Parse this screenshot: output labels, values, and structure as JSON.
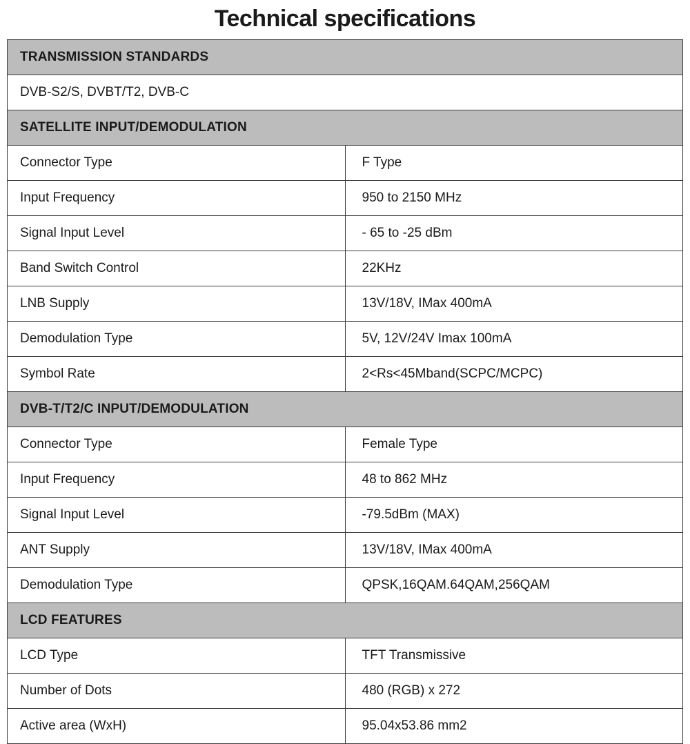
{
  "title": "Technical specifications",
  "styling": {
    "page_bg": "#ffffff",
    "header_bg": "#bcbcbc",
    "cell_bg": "#ffffff",
    "border_color": "#3a3a3a",
    "text_color": "#1a1a1a",
    "title_fontsize": 34,
    "title_weight": 900,
    "cell_fontsize": 19,
    "header_weight": 700,
    "label_col_width_pct": 43,
    "value_col_width_pct": 57,
    "cell_padding_v": 14,
    "cell_padding_h": 18
  },
  "sections": [
    {
      "header": "TRANSMISSION STANDARDS",
      "rows": [
        {
          "full": "DVB-S2/S, DVBT/T2, DVB-C"
        }
      ]
    },
    {
      "header": "SATELLITE INPUT/DEMODULATION",
      "rows": [
        {
          "label": "Connector Type",
          "value": "F Type"
        },
        {
          "label": "Input Frequency",
          "value": "950 to 2150 MHz"
        },
        {
          "label": "Signal Input Level",
          "value": "- 65 to -25 dBm"
        },
        {
          "label": "Band Switch Control",
          "value": "22KHz"
        },
        {
          "label": "LNB Supply",
          "value": "13V/18V, IMax 400mA"
        },
        {
          "label": "Demodulation Type",
          "value": "5V, 12V/24V Imax 100mA"
        },
        {
          "label": "Symbol Rate",
          "value": "2<Rs<45Mband(SCPC/MCPC)"
        }
      ]
    },
    {
      "header": "DVB-T/T2/C INPUT/DEMODULATION",
      "rows": [
        {
          "label": "Connector Type",
          "value": "Female Type"
        },
        {
          "label": "Input Frequency",
          "value": "48 to 862 MHz"
        },
        {
          "label": "Signal Input Level",
          "value": "-79.5dBm (MAX)"
        },
        {
          "label": "ANT Supply",
          "value": "13V/18V, IMax 400mA"
        },
        {
          "label": "Demodulation Type",
          "value": "QPSK,16QAM.64QAM,256QAM"
        }
      ]
    },
    {
      "header": "LCD FEATURES",
      "rows": [
        {
          "label": "LCD Type",
          "value": "TFT Transmissive"
        },
        {
          "label": "Number of Dots",
          "value": "480 (RGB) x 272"
        },
        {
          "label": "Active area (WxH)",
          "value": "95.04x53.86 mm2"
        }
      ]
    }
  ]
}
